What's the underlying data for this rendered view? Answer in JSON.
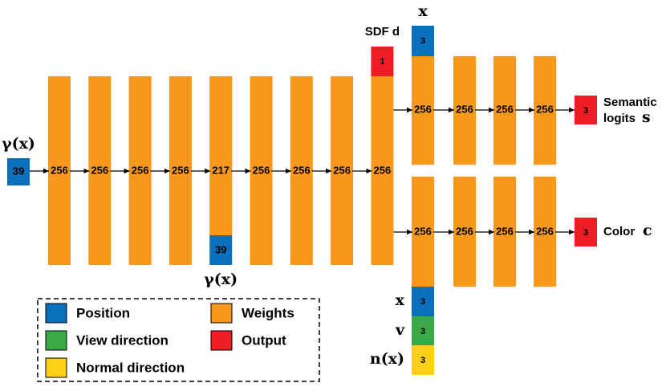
{
  "diagram": {
    "input": {
      "label": "γ(x)",
      "value": 39
    },
    "trunk": [
      256,
      256,
      256,
      256,
      217,
      256,
      256,
      256,
      256
    ],
    "skip": {
      "label": "γ(x)",
      "value": 39
    },
    "sdf": {
      "label": "SDF d",
      "value": 1
    },
    "semantic_branch": {
      "input": {
        "symbol": "x",
        "value": 3
      },
      "layers": [
        256,
        256,
        256,
        256
      ],
      "output": {
        "value": 3,
        "label_lines": [
          "Semantic",
          "logits"
        ],
        "symbol": "s"
      }
    },
    "color_branch": {
      "layers": [
        256,
        256,
        256,
        256
      ],
      "inputs": [
        {
          "symbol": "x",
          "value": 3
        },
        {
          "symbol": "v",
          "value": 3
        },
        {
          "symbol": "n(x)",
          "value": 3
        }
      ],
      "output": {
        "value": 3,
        "label": "Color",
        "symbol": "c"
      }
    },
    "legend": [
      {
        "label": "Position",
        "color": "#0a6fbd"
      },
      {
        "label": "View direction",
        "color": "#3aaa47"
      },
      {
        "label": "Normal direction",
        "color": "#fdd017"
      },
      {
        "label": "Weights",
        "color": "#f7981d"
      },
      {
        "label": "Output",
        "color": "#ee1c24"
      }
    ]
  }
}
